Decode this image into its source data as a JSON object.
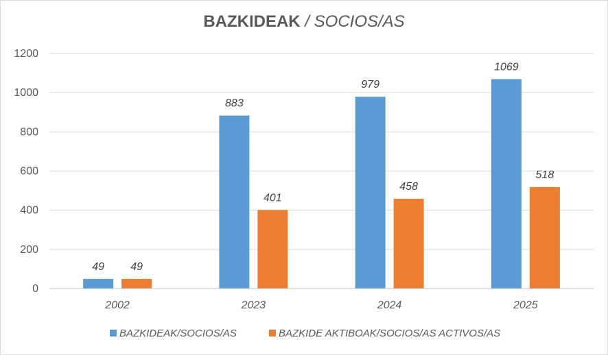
{
  "chart_data": {
    "type": "bar",
    "title": "BAZKIDEAK",
    "subtitle": "/ SOCIOS/AS",
    "categories": [
      "2002",
      "2023",
      "2024",
      "2025"
    ],
    "series": [
      {
        "name": "BAZKIDEAK/SOCIOS/AS",
        "color": "#5b9bd5",
        "values": [
          49,
          883,
          979,
          1069
        ]
      },
      {
        "name": "BAZKIDE AKTIBOAK/SOCIOS/AS ACTIVOS/AS",
        "color": "#ed7d31",
        "values": [
          49,
          401,
          458,
          518
        ]
      }
    ],
    "ylim": [
      0,
      1200
    ],
    "yticks": [
      0,
      200,
      400,
      600,
      800,
      1000,
      1200
    ],
    "grid": true,
    "legend_position": "bottom",
    "data_labels": true
  }
}
